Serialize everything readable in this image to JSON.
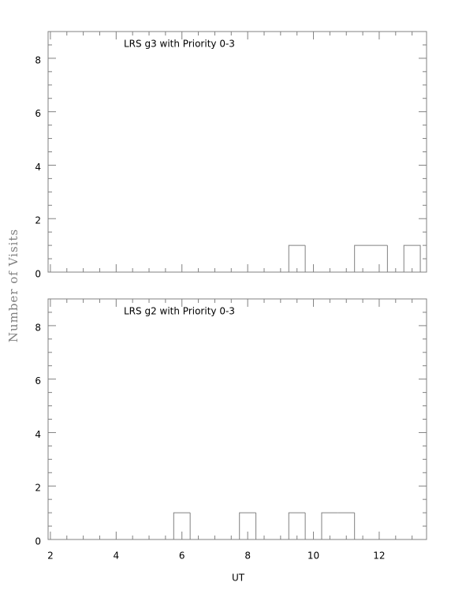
{
  "chart_data": [
    {
      "type": "histogram",
      "title": "LRS g3 with Priority 0-3",
      "ylabel": "Number of Visits",
      "bins": [
        2.25,
        2.75,
        3.25,
        3.75,
        4.25,
        4.75,
        5.25,
        5.75,
        6.25,
        6.75,
        7.25,
        7.75,
        8.25,
        8.75,
        9.25,
        9.75,
        10.25,
        10.75,
        11.25,
        11.75,
        12.25,
        12.75,
        13.25
      ],
      "values": [
        0,
        0,
        0,
        0,
        0,
        0,
        0,
        0,
        0,
        0,
        0,
        0,
        0,
        0,
        1,
        0,
        0,
        0,
        1,
        1,
        0,
        1
      ],
      "color": "#808080",
      "xlim": [
        1.93,
        13.44
      ],
      "xticks": [
        2,
        4,
        6,
        8,
        10,
        12
      ],
      "xminorticks": [
        2.5,
        3,
        3.5,
        4.5,
        5,
        5.5,
        6.5,
        7,
        7.5,
        8.5,
        9,
        9.5,
        10.5,
        11,
        11.5,
        12.5,
        13
      ],
      "ylim": [
        0,
        9
      ],
      "yticks": [
        0,
        2,
        4,
        6,
        8
      ],
      "yminorticks": [
        0.5,
        1,
        1.5,
        2.5,
        3,
        3.5,
        4.5,
        5,
        5.5,
        6.5,
        7,
        7.5,
        8.5
      ]
    },
    {
      "type": "histogram",
      "title": "LRS g2 with Priority 0-3",
      "xlabel": "UT",
      "bins": [
        2.25,
        2.75,
        3.25,
        3.75,
        4.25,
        4.75,
        5.25,
        5.75,
        6.25,
        6.75,
        7.25,
        7.75,
        8.25,
        8.75,
        9.25,
        9.75,
        10.25,
        10.75,
        11.25,
        11.75,
        12.25,
        12.75,
        13.25
      ],
      "values": [
        0,
        0,
        0,
        0,
        0,
        0,
        0,
        1,
        0,
        0,
        0,
        1,
        0,
        0,
        1,
        0,
        1,
        1,
        0,
        0,
        0,
        0
      ],
      "color": "#808080",
      "xlim": [
        1.93,
        13.44
      ],
      "xticks": [
        2,
        4,
        6,
        8,
        10,
        12
      ],
      "xminorticks": [
        2.5,
        3,
        3.5,
        4.5,
        5,
        5.5,
        6.5,
        7,
        7.5,
        8.5,
        9,
        9.5,
        10.5,
        11,
        11.5,
        12.5,
        13
      ],
      "ylim": [
        0,
        9
      ],
      "yticks": [
        0,
        2,
        4,
        6,
        8
      ],
      "yminorticks": [
        0.5,
        1,
        1.5,
        2.5,
        3,
        3.5,
        4.5,
        5,
        5.5,
        6.5,
        7,
        7.5,
        8.5
      ]
    }
  ]
}
